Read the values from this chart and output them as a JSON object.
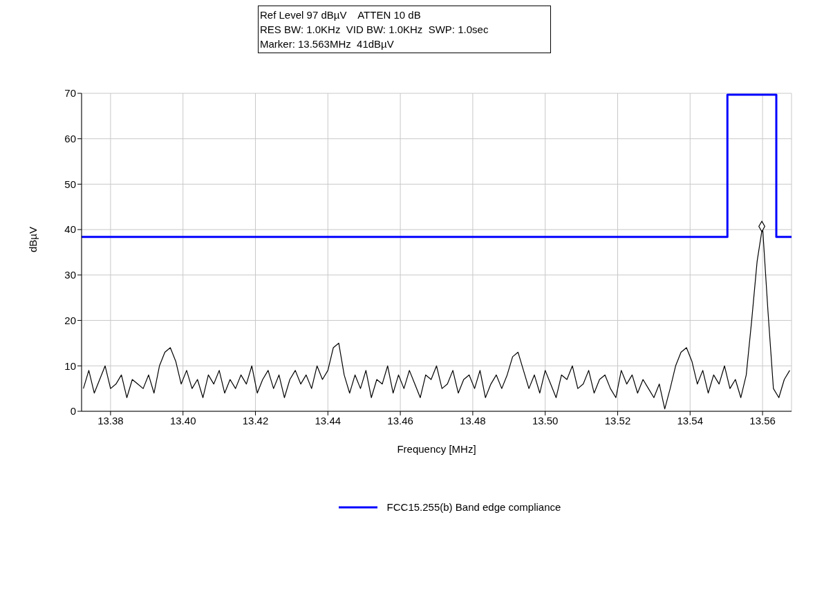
{
  "chart_data": {
    "type": "line",
    "xlabel": "Frequency [MHz]",
    "ylabel": "dBµV",
    "annotations": [
      "Ref Level 97 dBµV    ATTEN 10 dB",
      "RES BW: 1.0KHz  VID BW: 1.0KHz  SWP: 1.0sec",
      "Marker: 13.563MHz  41dBµV"
    ],
    "xlim": [
      13.372,
      13.568
    ],
    "ylim": [
      0,
      70
    ],
    "xticks": [
      13.38,
      {
        "value": 13.4,
        "label": "13.40"
      },
      13.42,
      13.44,
      13.46,
      13.48,
      {
        "value": 13.5,
        "label": "13.50"
      },
      13.52,
      13.54,
      13.56
    ],
    "yticks": [
      0,
      10,
      20,
      30,
      40,
      50,
      60,
      70
    ],
    "grid": true,
    "legend": "bottom",
    "line_style": "solid",
    "series": [
      {
        "color": "#000000",
        "x": [
          13.3725,
          13.374,
          13.3755,
          13.377,
          13.3785,
          13.38,
          13.3815,
          13.383,
          13.3845,
          13.386,
          13.3875,
          13.389,
          13.3905,
          13.392,
          13.3935,
          13.395,
          13.3965,
          13.398,
          13.3995,
          13.401,
          13.4025,
          13.404,
          13.4055,
          13.407,
          13.4085,
          13.41,
          13.4115,
          13.413,
          13.4145,
          13.416,
          13.4175,
          13.419,
          13.4205,
          13.422,
          13.4235,
          13.425,
          13.4265,
          13.428,
          13.4295,
          13.431,
          13.4325,
          13.434,
          13.4355,
          13.437,
          13.4385,
          13.44,
          13.4415,
          13.443,
          13.4445,
          13.446,
          13.4475,
          13.449,
          13.4505,
          13.452,
          13.4535,
          13.455,
          13.4565,
          13.458,
          13.4595,
          13.461,
          13.4625,
          13.464,
          13.4655,
          13.467,
          13.4685,
          13.47,
          13.4715,
          13.473,
          13.4745,
          13.476,
          13.4775,
          13.479,
          13.4805,
          13.482,
          13.4835,
          13.485,
          13.4865,
          13.488,
          13.4895,
          13.491,
          13.4925,
          13.494,
          13.4955,
          13.497,
          13.4985,
          13.5,
          13.5015,
          13.503,
          13.5045,
          13.506,
          13.5075,
          13.509,
          13.5105,
          13.512,
          13.5135,
          13.515,
          13.5165,
          13.518,
          13.5195,
          13.521,
          13.5225,
          13.524,
          13.5255,
          13.527,
          13.5285,
          13.53,
          13.5315,
          13.533,
          13.5345,
          13.536,
          13.5375,
          13.539,
          13.5405,
          13.542,
          13.5435,
          13.545,
          13.5465,
          13.548,
          13.5495,
          13.551,
          13.5525,
          13.554,
          13.5555,
          13.557,
          13.5585,
          13.56,
          13.5615,
          13.563,
          13.5645,
          13.566,
          13.5675
        ],
        "values": [
          5,
          9,
          4,
          7,
          10,
          5,
          6,
          8,
          3,
          7,
          6,
          5,
          8,
          4,
          10,
          13,
          14,
          11,
          6,
          9,
          5,
          7,
          3,
          8,
          6,
          9,
          4,
          7,
          5,
          8,
          6,
          10,
          4,
          7,
          9,
          5,
          8,
          3,
          7,
          9,
          6,
          8,
          5,
          10,
          7,
          9,
          14,
          15,
          8,
          4,
          8,
          5,
          9,
          3,
          7,
          6,
          10,
          4,
          8,
          5,
          9,
          6,
          3,
          8,
          7,
          10,
          5,
          6,
          9,
          4,
          7,
          8,
          5,
          9,
          3,
          6,
          8,
          5,
          8,
          12,
          13,
          9,
          5,
          8,
          4,
          9,
          6,
          3,
          8,
          7,
          10,
          5,
          6,
          9,
          4,
          7,
          8,
          5,
          3,
          9,
          6,
          8,
          4,
          7,
          5,
          3,
          6,
          0.5,
          5,
          10,
          13,
          14,
          11,
          6,
          9,
          4,
          8,
          6,
          10,
          5,
          7,
          3,
          8,
          20,
          33,
          40.7,
          22,
          5,
          3,
          7,
          9
        ]
      },
      {
        "type": "step",
        "name": "FCC15.255(b) Band edge compliance",
        "color": "#0000ff",
        "x": [
          13.372,
          13.5503,
          13.5638,
          13.568
        ],
        "values": [
          38.4,
          69.7,
          38.4,
          38.4
        ]
      },
      {
        "type": "scatter",
        "color": "#000000",
        "marker": "diamond",
        "x": [
          13.5598
        ],
        "values": [
          40.7
        ]
      }
    ]
  }
}
